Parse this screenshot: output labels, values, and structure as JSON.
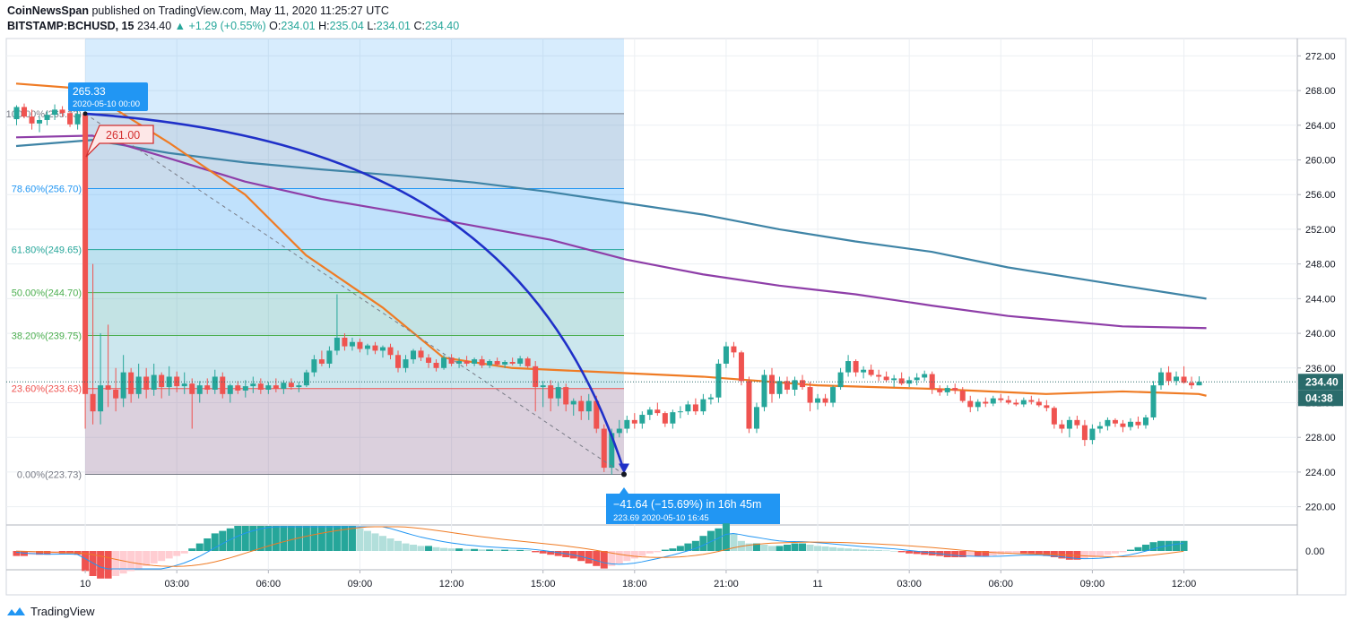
{
  "header": {
    "publisher": "CoinNewsSpan",
    "published_text": " published on TradingView.com, May 11, 2020 11:25:27 UTC",
    "symbol": "BITSTAMP:BCHUSD, 15",
    "last": "234.40",
    "change": "+1.29 (+0.55%)",
    "o_label": "O:",
    "o": "234.01",
    "h_label": "H:",
    "h": "235.04",
    "l_label": "L:",
    "l": "234.01",
    "c_label": "C:",
    "c": "234.40"
  },
  "footer": {
    "brand": "TradingView"
  },
  "colors": {
    "up": "#26a69a",
    "down": "#ef5350",
    "ma_orange": "#ef7b24",
    "ma_purple": "#8e3ea8",
    "ma_teal": "#3f84a6",
    "arc": "#1f30c8",
    "price_label": "#2a6b6b",
    "callout_blue": "#2196f3",
    "callout_red": "#d32f2f"
  },
  "chart_data": {
    "type": "candlestick",
    "x_ticks": [
      "10",
      "03:00",
      "06:00",
      "09:00",
      "12:00",
      "15:00",
      "18:00",
      "21:00",
      "11",
      "03:00",
      "06:00",
      "09:00",
      "12:00"
    ],
    "y_ticks": [
      "220.00",
      "224.00",
      "228.00",
      "232.00",
      "236.00",
      "240.00",
      "244.00",
      "248.00",
      "252.00",
      "256.00",
      "260.00",
      "264.00",
      "268.00",
      "272.00"
    ],
    "ylim": [
      218,
      274
    ],
    "fib_levels": [
      {
        "label": "100.00%(265.33)",
        "value": 265.33
      },
      {
        "label": "78.60%(256.70)",
        "value": 256.7
      },
      {
        "label": "61.80%(249.65)",
        "value": 249.65
      },
      {
        "label": "50.00%(244.70)",
        "value": 244.7
      },
      {
        "label": "38.20%(239.75)",
        "value": 239.75
      },
      {
        "label": "23.60%(233.63)",
        "value": 233.63
      },
      {
        "label": "0.00%(223.73)",
        "value": 223.73
      }
    ],
    "last_price": "234.40",
    "countdown": "04:38",
    "callouts": {
      "high_value": "265.33",
      "high_date": "2020-05-10 00:00",
      "level": "261.00",
      "measure": "−41.64 (−15.69%) in 16h 45m",
      "low_value": "223.69",
      "low_date": "2020-05-10  16:45"
    },
    "macd_tick": "0.00",
    "candles": [
      [
        264.7,
        266.3,
        264.0,
        266.1
      ],
      [
        266.1,
        266.5,
        264.8,
        265.0
      ],
      [
        265.0,
        265.8,
        263.5,
        264.2
      ],
      [
        264.2,
        265.0,
        263.2,
        264.6
      ],
      [
        264.6,
        265.6,
        264.0,
        265.2
      ],
      [
        265.2,
        266.4,
        264.6,
        265.8
      ],
      [
        265.8,
        266.2,
        265.0,
        265.4
      ],
      [
        265.4,
        265.9,
        263.8,
        264.1
      ],
      [
        264.1,
        265.8,
        263.5,
        265.3
      ],
      [
        265.3,
        265.3,
        229.0,
        233.0
      ],
      [
        233.0,
        248.0,
        229.5,
        231.0
      ],
      [
        231.0,
        240.0,
        229.5,
        234.0
      ],
      [
        234.0,
        241.0,
        231.5,
        233.5
      ],
      [
        233.5,
        236.0,
        231.0,
        232.5
      ],
      [
        232.5,
        237.5,
        231.5,
        235.5
      ],
      [
        235.5,
        236.0,
        232.0,
        233.0
      ],
      [
        233.0,
        236.5,
        232.5,
        235.0
      ],
      [
        235.0,
        236.0,
        232.5,
        233.5
      ],
      [
        233.5,
        236.5,
        232.8,
        235.2
      ],
      [
        235.2,
        235.5,
        232.5,
        233.8
      ],
      [
        233.8,
        236.2,
        232.8,
        235.0
      ],
      [
        235.0,
        235.6,
        233.2,
        233.9
      ],
      [
        233.9,
        235.5,
        233.0,
        234.2
      ],
      [
        234.2,
        234.8,
        229.0,
        233.0
      ],
      [
        233.0,
        234.5,
        232.0,
        234.0
      ],
      [
        234.0,
        234.8,
        233.0,
        233.5
      ],
      [
        233.5,
        235.8,
        233.0,
        235.0
      ],
      [
        235.0,
        235.5,
        232.5,
        233.0
      ],
      [
        233.0,
        234.2,
        232.0,
        234.0
      ],
      [
        234.0,
        234.5,
        233.0,
        233.4
      ],
      [
        233.4,
        234.6,
        232.6,
        233.9
      ],
      [
        233.9,
        235.0,
        233.1,
        234.2
      ],
      [
        234.2,
        234.8,
        233.0,
        233.5
      ],
      [
        233.5,
        234.4,
        233.0,
        234.0
      ],
      [
        234.0,
        234.8,
        233.2,
        233.6
      ],
      [
        233.6,
        234.6,
        233.0,
        234.3
      ],
      [
        234.3,
        234.8,
        233.5,
        233.8
      ],
      [
        233.8,
        234.4,
        233.2,
        234.0
      ],
      [
        234.0,
        235.8,
        233.8,
        235.5
      ],
      [
        235.5,
        237.5,
        235.0,
        237.0
      ],
      [
        237.0,
        238.0,
        236.2,
        236.5
      ],
      [
        236.5,
        238.5,
        236.0,
        238.0
      ],
      [
        238.0,
        244.5,
        237.5,
        239.5
      ],
      [
        239.5,
        240.0,
        238.0,
        238.5
      ],
      [
        238.5,
        239.5,
        238.0,
        239.0
      ],
      [
        239.0,
        239.4,
        237.8,
        238.2
      ],
      [
        238.2,
        238.8,
        237.5,
        238.6
      ],
      [
        238.6,
        239.0,
        237.6,
        238.0
      ],
      [
        238.0,
        238.6,
        237.2,
        238.4
      ],
      [
        238.4,
        238.8,
        237.0,
        237.5
      ],
      [
        237.5,
        238.0,
        235.5,
        236.0
      ],
      [
        236.0,
        237.5,
        235.5,
        237.0
      ],
      [
        237.0,
        238.2,
        236.5,
        238.0
      ],
      [
        238.0,
        238.4,
        236.8,
        237.2
      ],
      [
        237.2,
        237.6,
        236.0,
        236.6
      ],
      [
        236.6,
        237.0,
        235.6,
        236.0
      ],
      [
        236.0,
        237.5,
        235.8,
        237.2
      ],
      [
        237.2,
        237.6,
        236.2,
        236.5
      ],
      [
        236.5,
        237.2,
        236.0,
        236.8
      ],
      [
        236.8,
        237.4,
        236.2,
        236.5
      ],
      [
        236.5,
        237.2,
        236.2,
        237.0
      ],
      [
        237.0,
        237.4,
        236.0,
        236.3
      ],
      [
        236.3,
        237.0,
        236.0,
        236.8
      ],
      [
        236.8,
        237.2,
        236.2,
        236.4
      ],
      [
        236.4,
        236.9,
        236.0,
        236.7
      ],
      [
        236.7,
        237.2,
        236.3,
        236.5
      ],
      [
        236.5,
        237.4,
        236.2,
        237.1
      ],
      [
        237.1,
        237.3,
        236.0,
        236.2
      ],
      [
        236.2,
        236.8,
        231.0,
        233.8
      ],
      [
        233.8,
        234.5,
        231.5,
        234.0
      ],
      [
        234.0,
        234.6,
        231.0,
        232.5
      ],
      [
        232.5,
        234.3,
        231.6,
        233.8
      ],
      [
        233.8,
        234.2,
        231.0,
        231.8
      ],
      [
        231.8,
        232.5,
        230.5,
        232.2
      ],
      [
        232.2,
        232.8,
        230.0,
        231.0
      ],
      [
        231.0,
        233.0,
        230.0,
        232.2
      ],
      [
        232.2,
        232.8,
        228.5,
        229.0
      ],
      [
        229.0,
        229.5,
        224.0,
        224.5
      ],
      [
        224.5,
        229.0,
        223.7,
        228.5
      ],
      [
        228.5,
        230.0,
        228.0,
        229.0
      ],
      [
        229.0,
        230.5,
        228.5,
        230.0
      ],
      [
        230.0,
        230.8,
        229.0,
        229.6
      ],
      [
        229.6,
        231.0,
        229.0,
        230.6
      ],
      [
        230.6,
        231.5,
        230.0,
        231.2
      ],
      [
        231.2,
        232.0,
        230.5,
        230.8
      ],
      [
        230.8,
        231.0,
        229.2,
        229.6
      ],
      [
        229.6,
        231.2,
        229.0,
        230.9
      ],
      [
        230.9,
        231.6,
        230.2,
        231.0
      ],
      [
        231.0,
        232.2,
        230.6,
        231.8
      ],
      [
        231.8,
        232.5,
        230.6,
        231.0
      ],
      [
        231.0,
        233.0,
        230.6,
        232.4
      ],
      [
        232.4,
        233.0,
        231.8,
        232.6
      ],
      [
        232.6,
        237.0,
        232.0,
        236.5
      ],
      [
        236.5,
        239.0,
        236.0,
        238.5
      ],
      [
        238.5,
        239.0,
        237.2,
        237.8
      ],
      [
        237.8,
        238.0,
        234.0,
        234.5
      ],
      [
        234.5,
        235.0,
        228.5,
        229.0
      ],
      [
        229.0,
        232.0,
        228.5,
        231.5
      ],
      [
        231.5,
        235.8,
        231.0,
        235.2
      ],
      [
        235.2,
        236.0,
        232.0,
        233.0
      ],
      [
        233.0,
        235.0,
        232.5,
        234.5
      ],
      [
        234.5,
        235.0,
        233.0,
        233.5
      ],
      [
        233.5,
        235.0,
        232.8,
        234.6
      ],
      [
        234.6,
        235.2,
        233.5,
        233.8
      ],
      [
        233.8,
        234.4,
        231.0,
        232.0
      ],
      [
        232.0,
        233.0,
        231.2,
        232.5
      ],
      [
        232.5,
        233.0,
        231.6,
        232.0
      ],
      [
        232.0,
        234.0,
        231.5,
        233.8
      ],
      [
        233.8,
        236.0,
        233.5,
        235.5
      ],
      [
        235.5,
        237.5,
        235.0,
        236.8
      ],
      [
        236.8,
        237.0,
        235.0,
        235.5
      ],
      [
        235.5,
        236.2,
        234.8,
        235.8
      ],
      [
        235.8,
        236.4,
        235.0,
        235.2
      ],
      [
        235.2,
        235.8,
        234.5,
        235.0
      ],
      [
        235.0,
        235.6,
        234.4,
        234.6
      ],
      [
        234.6,
        235.2,
        233.8,
        234.8
      ],
      [
        234.8,
        235.5,
        234.0,
        234.2
      ],
      [
        234.2,
        235.0,
        233.8,
        234.6
      ],
      [
        234.6,
        235.4,
        234.0,
        234.9
      ],
      [
        234.9,
        235.7,
        234.5,
        235.3
      ],
      [
        235.3,
        235.6,
        233.0,
        233.6
      ],
      [
        233.6,
        234.0,
        232.8,
        233.2
      ],
      [
        233.2,
        234.0,
        232.8,
        233.7
      ],
      [
        233.7,
        234.2,
        233.0,
        233.4
      ],
      [
        233.4,
        233.8,
        232.0,
        232.2
      ],
      [
        232.2,
        232.8,
        230.9,
        231.5
      ],
      [
        231.5,
        232.4,
        231.0,
        232.1
      ],
      [
        232.1,
        232.6,
        231.5,
        231.9
      ],
      [
        231.9,
        232.8,
        231.6,
        232.5
      ],
      [
        232.5,
        233.0,
        232.0,
        232.3
      ],
      [
        232.3,
        232.8,
        231.8,
        232.0
      ],
      [
        232.0,
        232.4,
        231.6,
        231.8
      ],
      [
        231.8,
        232.6,
        231.5,
        232.3
      ],
      [
        232.3,
        232.8,
        231.8,
        232.1
      ],
      [
        232.1,
        232.5,
        231.5,
        231.7
      ],
      [
        231.7,
        232.3,
        231.0,
        231.4
      ],
      [
        231.4,
        231.6,
        229.0,
        229.5
      ],
      [
        229.5,
        230.0,
        228.5,
        229.0
      ],
      [
        229.0,
        230.4,
        228.0,
        230.0
      ],
      [
        230.0,
        230.5,
        229.0,
        229.4
      ],
      [
        229.4,
        230.0,
        227.0,
        227.7
      ],
      [
        227.7,
        229.5,
        227.2,
        229.0
      ],
      [
        229.0,
        229.8,
        228.5,
        229.3
      ],
      [
        229.3,
        230.3,
        228.8,
        230.0
      ],
      [
        230.0,
        230.2,
        229.2,
        229.6
      ],
      [
        229.6,
        230.0,
        228.6,
        229.2
      ],
      [
        229.2,
        230.2,
        228.8,
        229.8
      ],
      [
        229.8,
        230.4,
        229.0,
        229.4
      ],
      [
        229.4,
        230.6,
        229.0,
        230.3
      ],
      [
        230.3,
        234.5,
        230.0,
        234.0
      ],
      [
        234.0,
        236.0,
        233.5,
        235.5
      ],
      [
        235.5,
        236.2,
        234.0,
        234.5
      ],
      [
        234.5,
        235.6,
        234.0,
        235.0
      ],
      [
        235.0,
        236.2,
        234.2,
        234.3
      ],
      [
        234.3,
        235.0,
        233.6,
        234.0
      ],
      [
        234.0,
        235.04,
        234.0,
        234.4
      ]
    ],
    "ma_orange": [
      [
        0,
        268.8
      ],
      [
        9,
        268.2
      ],
      [
        12,
        266.4
      ],
      [
        20,
        262.0
      ],
      [
        30,
        256.0
      ],
      [
        38,
        249.0
      ],
      [
        48,
        243.0
      ],
      [
        56,
        237.2
      ],
      [
        65,
        236.0
      ],
      [
        75,
        235.6
      ],
      [
        90,
        235.0
      ],
      [
        105,
        234.0
      ],
      [
        120,
        233.6
      ],
      [
        135,
        233.0
      ],
      [
        145,
        233.3
      ],
      [
        155,
        233.0
      ],
      [
        156,
        232.8
      ]
    ],
    "ma_purple": [
      [
        0,
        262.6
      ],
      [
        10,
        262.8
      ],
      [
        20,
        260.2
      ],
      [
        30,
        257.5
      ],
      [
        40,
        255.5
      ],
      [
        50,
        254.0
      ],
      [
        60,
        252.4
      ],
      [
        70,
        250.8
      ],
      [
        80,
        248.5
      ],
      [
        90,
        246.8
      ],
      [
        100,
        245.5
      ],
      [
        110,
        244.5
      ],
      [
        120,
        243.2
      ],
      [
        130,
        242.0
      ],
      [
        145,
        240.8
      ],
      [
        156,
        240.6
      ]
    ],
    "ma_teal": [
      [
        0,
        261.6
      ],
      [
        10,
        262.3
      ],
      [
        20,
        260.8
      ],
      [
        30,
        259.7
      ],
      [
        40,
        258.9
      ],
      [
        50,
        258.2
      ],
      [
        60,
        257.4
      ],
      [
        70,
        256.3
      ],
      [
        80,
        255.0
      ],
      [
        90,
        253.7
      ],
      [
        100,
        252.0
      ],
      [
        110,
        250.6
      ],
      [
        120,
        249.4
      ],
      [
        130,
        247.6
      ],
      [
        145,
        245.5
      ],
      [
        156,
        244.0
      ]
    ],
    "macd_hist": [
      -2,
      -2,
      -1.5,
      -1.5,
      -1.5,
      -1,
      -1,
      -1,
      -1.5,
      -8,
      -10,
      -11,
      -11,
      -10,
      -9,
      -8,
      -7,
      -6,
      -5,
      -4,
      -3,
      -2,
      -1,
      1,
      3,
      5,
      7,
      8,
      9,
      10,
      10,
      10,
      10,
      10,
      10,
      10,
      10,
      10,
      10,
      10,
      10,
      10,
      10,
      10,
      10,
      9,
      8,
      7,
      6,
      5,
      4,
      3,
      2.5,
      2,
      2,
      1.5,
      1.2,
      1,
      1,
      0.8,
      0.8,
      0.6,
      0.6,
      0.5,
      0.5,
      0.4,
      0.4,
      0.3,
      -0.5,
      -1,
      -1.5,
      -2,
      -2.5,
      -3,
      -4,
      -5,
      -6,
      -7,
      -6,
      -5,
      -4,
      -3,
      -2,
      -1,
      -0.5,
      0.5,
      1,
      2,
      3,
      4,
      6,
      8,
      9,
      11,
      7,
      4,
      3,
      3,
      2.5,
      2,
      2,
      2.5,
      3,
      3,
      2.5,
      2,
      1.8,
      1.5,
      1.2,
      1,
      0.8,
      0.6,
      0.5,
      0.4,
      0.2,
      0,
      -0.5,
      -1,
      -1.2,
      -1.5,
      -1.8,
      -2,
      -2.5,
      -2.5,
      -2.5,
      -2,
      -2,
      -2,
      -1.8,
      -1.5,
      -1.2,
      -1,
      -1,
      -1.2,
      -1.5,
      -2,
      -2.5,
      -3,
      -3.5,
      -3.5,
      -3,
      -2.5,
      -2,
      -1.5,
      -1,
      -0.5,
      0.5,
      1.5,
      2.5,
      3.5,
      4,
      4,
      4,
      4
    ]
  }
}
